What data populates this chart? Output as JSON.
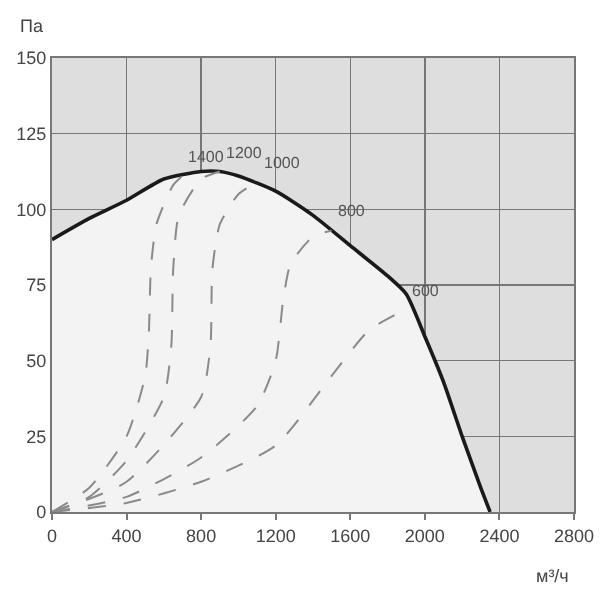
{
  "chart_data": {
    "type": "line",
    "xlabel": "м³/ч",
    "ylabel": "Па",
    "xlim": [
      0,
      2800
    ],
    "ylim": [
      0,
      150
    ],
    "xticks": [
      0,
      400,
      800,
      1200,
      1600,
      2000,
      2400,
      2800
    ],
    "yticks": [
      0,
      25,
      50,
      75,
      100,
      125,
      150
    ],
    "grid": true,
    "legend": false,
    "marker": "none",
    "series": [
      {
        "type": "area",
        "color": "#1a1a1a",
        "line_style": "solid",
        "x": [
          0,
          200,
          400,
          600,
          800,
          900,
          1000,
          1200,
          1400,
          1600,
          1800,
          1900,
          2000,
          2100,
          2200,
          2300,
          2350
        ],
        "values": [
          90,
          97,
          103,
          110,
          112.5,
          112.5,
          111,
          106,
          98,
          88,
          78,
          72,
          58,
          43,
          25,
          8,
          0
        ]
      },
      {
        "name": "1400",
        "color": "#8a8a8a",
        "line_style": "dashed",
        "x": [
          0,
          200,
          400,
          500,
          520,
          530,
          560,
          650,
          700
        ],
        "values": [
          0,
          8,
          25,
          45,
          60,
          80,
          95,
          108,
          111
        ]
      },
      {
        "name": "1200",
        "color": "#8a8a8a",
        "line_style": "dashed",
        "x": [
          0,
          200,
          400,
          600,
          640,
          650,
          680,
          800,
          900
        ],
        "values": [
          0,
          5,
          17,
          38,
          55,
          80,
          98,
          110,
          112.5
        ]
      },
      {
        "name": "1000",
        "color": "#8a8a8a",
        "line_style": "dashed",
        "x": [
          0,
          400,
          800,
          850,
          860,
          900,
          1000,
          1100
        ],
        "values": [
          0,
          10,
          38,
          55,
          80,
          95,
          105,
          109
        ]
      },
      {
        "name": "800",
        "color": "#8a8a8a",
        "line_style": "dashed",
        "x": [
          0,
          400,
          800,
          1100,
          1200,
          1240,
          1280,
          1400,
          1500
        ],
        "values": [
          0,
          5,
          18,
          35,
          50,
          70,
          82,
          91,
          93
        ]
      },
      {
        "name": "600",
        "color": "#8a8a8a",
        "line_style": "dashed",
        "x": [
          0,
          400,
          800,
          1200,
          1500,
          1700,
          1900
        ],
        "values": [
          0,
          3,
          10,
          22,
          45,
          60,
          67
        ]
      }
    ]
  }
}
